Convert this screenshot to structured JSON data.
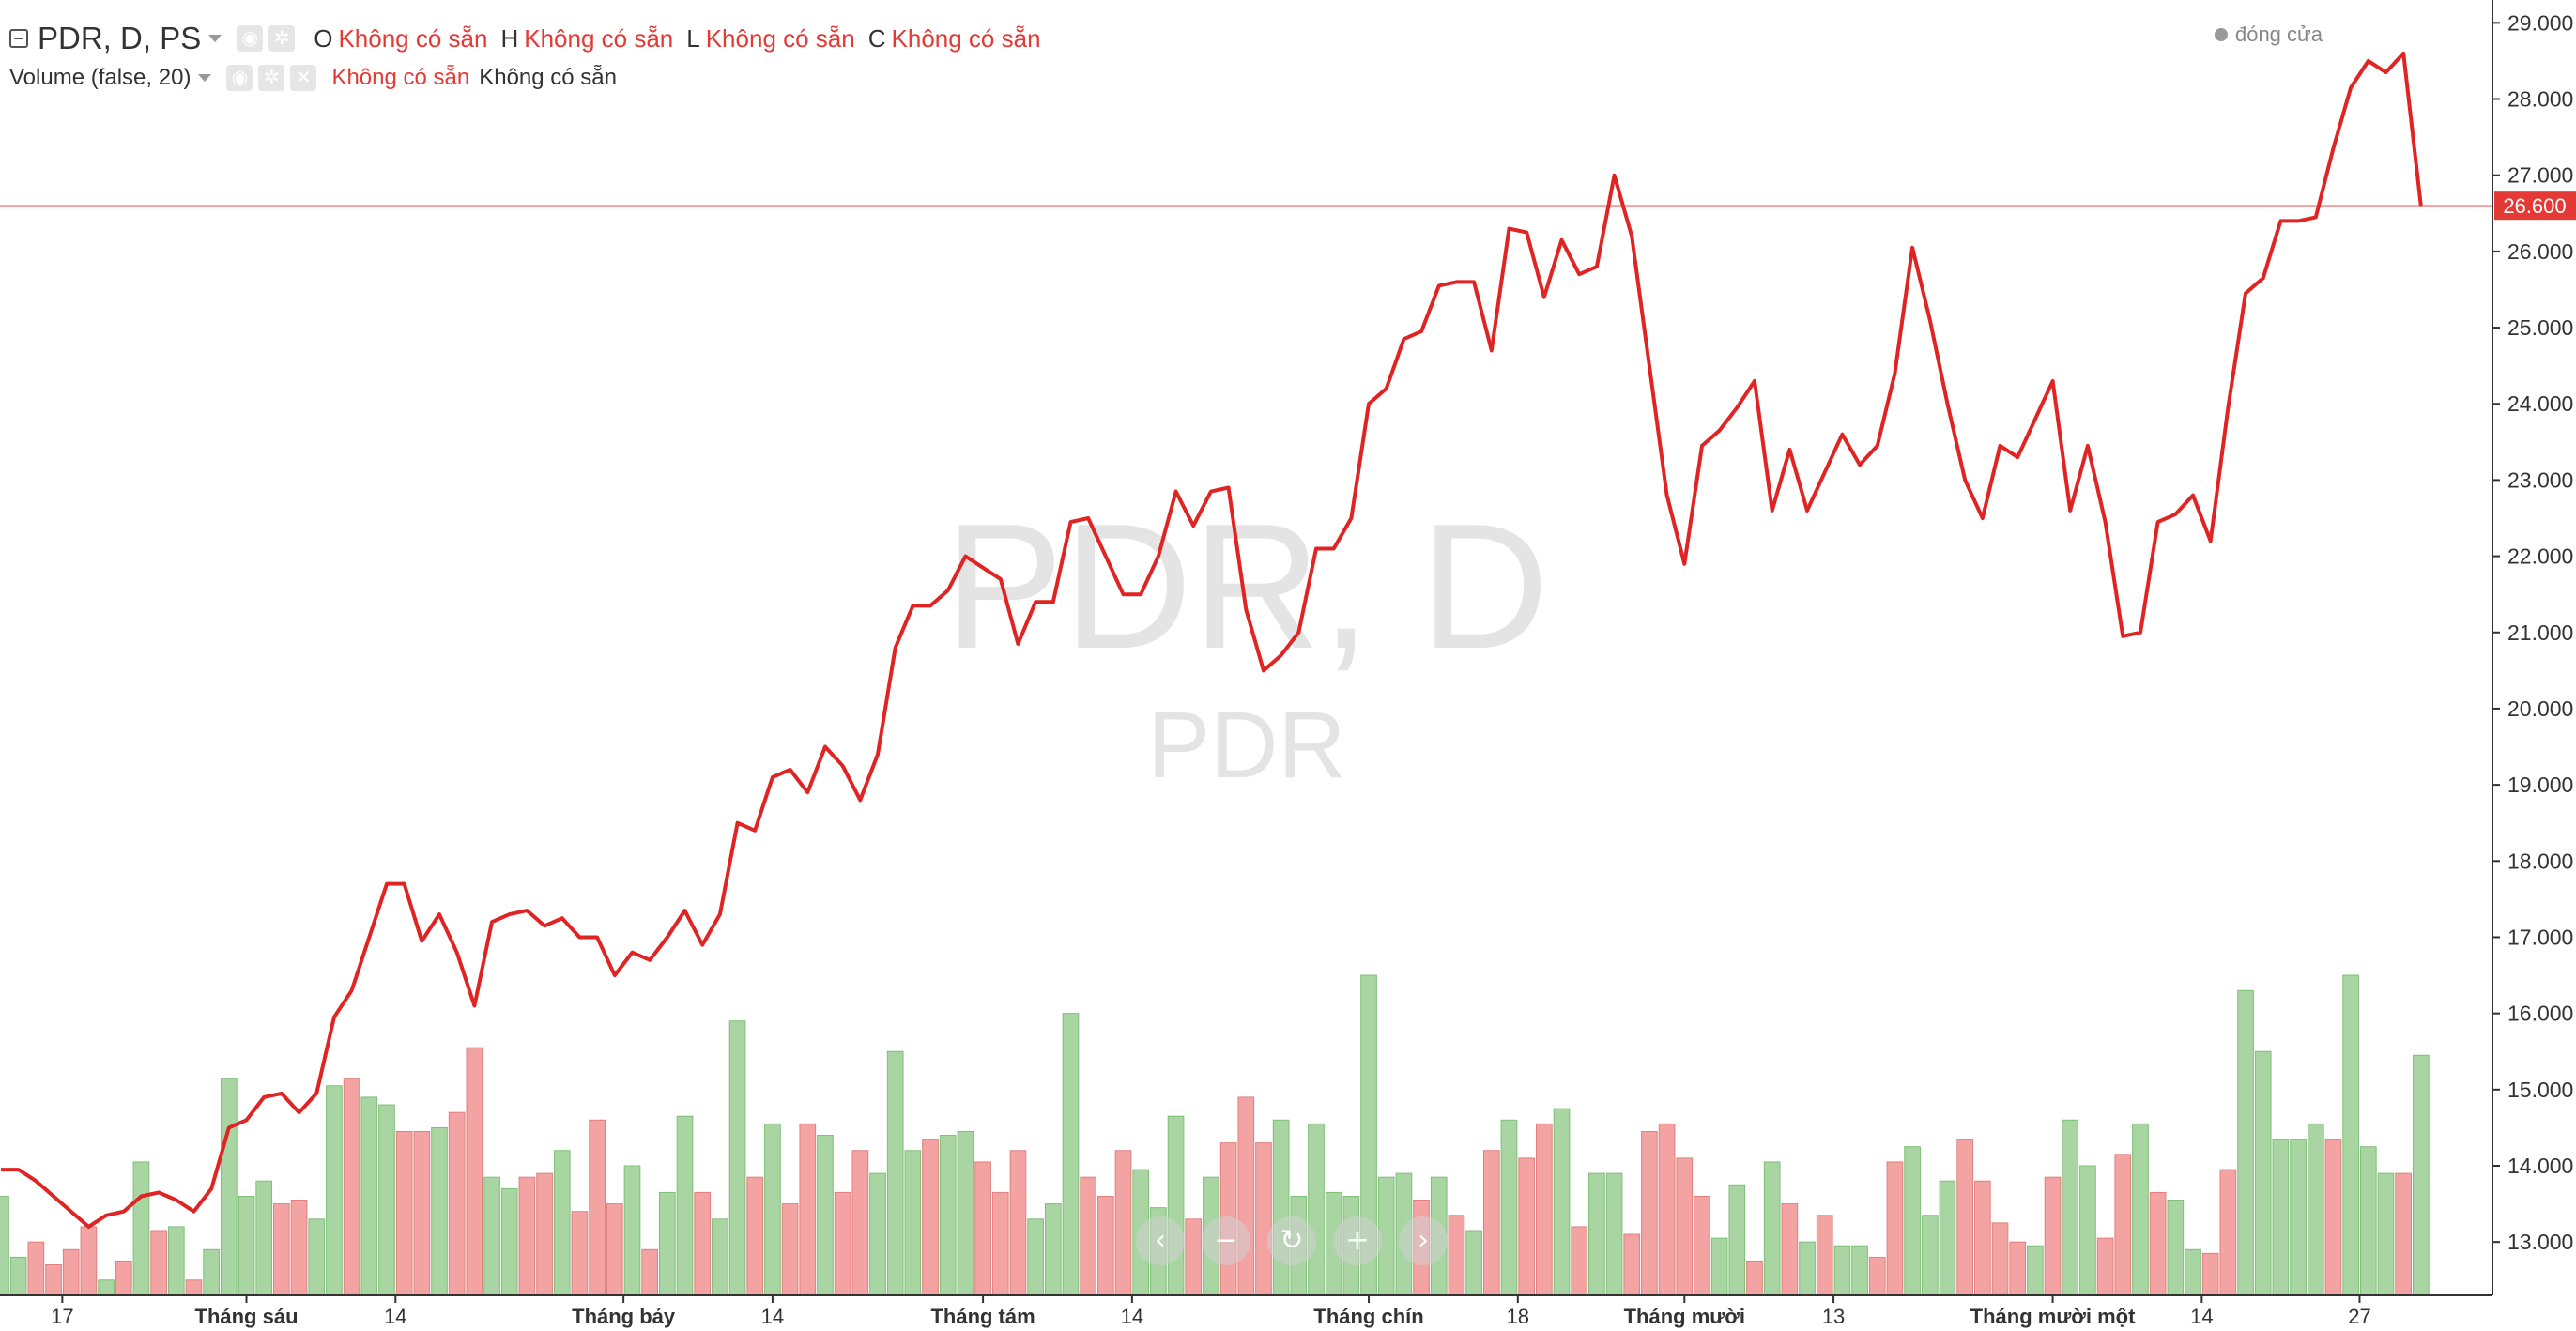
{
  "header": {
    "symbol": "PDR, D, PS",
    "ohlc": [
      {
        "key": "O",
        "value": "Không có sẵn"
      },
      {
        "key": "H",
        "value": "Không có sẵn"
      },
      {
        "key": "L",
        "value": "Không có sẵn"
      },
      {
        "key": "C",
        "value": "Không có sẵn"
      }
    ],
    "close_legend": "đóng cửa"
  },
  "volume_header": {
    "title": "Volume (false, 20)",
    "value1": "Không có sẵn",
    "value2": "Không có sẵn"
  },
  "icons": {
    "collapse": "collapse-icon",
    "eye": "eye-icon",
    "gear": "gear-icon",
    "close": "close-icon"
  },
  "nav_buttons": [
    {
      "name": "scroll-left-button",
      "glyph": "‹"
    },
    {
      "name": "zoom-out-button",
      "glyph": "−"
    },
    {
      "name": "reset-button",
      "glyph": "↻"
    },
    {
      "name": "zoom-in-button",
      "glyph": "+"
    },
    {
      "name": "scroll-right-button",
      "glyph": "›"
    }
  ],
  "colors": {
    "price_line": "#e02424",
    "up_volume": "#a8d5a2",
    "down_volume": "#f4a3a3",
    "price_tag": "#e53935",
    "watermark": "#e4e4e4"
  },
  "chart_data": {
    "type": "line",
    "watermark": "PDR, D",
    "watermark_sub": "PDR",
    "last_price": "26.600",
    "ylim": [
      12.3,
      29.3
    ],
    "y_ticks": [
      "13.000",
      "14.000",
      "15.000",
      "16.000",
      "17.000",
      "18.000",
      "19.000",
      "20.000",
      "21.000",
      "22.000",
      "23.000",
      "24.000",
      "25.000",
      "26.000",
      "27.000",
      "28.000",
      "29.000"
    ],
    "x_ticks": [
      {
        "label": "17",
        "index": 3.5,
        "bold": false
      },
      {
        "label": "Tháng sáu",
        "index": 14,
        "bold": true
      },
      {
        "label": "14",
        "index": 22.5,
        "bold": false
      },
      {
        "label": "Tháng bảy",
        "index": 35.5,
        "bold": true
      },
      {
        "label": "14",
        "index": 44,
        "bold": false
      },
      {
        "label": "Tháng tám",
        "index": 56,
        "bold": true
      },
      {
        "label": "14",
        "index": 64.5,
        "bold": false
      },
      {
        "label": "Tháng chín",
        "index": 78,
        "bold": true
      },
      {
        "label": "18",
        "index": 86.5,
        "bold": false
      },
      {
        "label": "Tháng mười",
        "index": 96,
        "bold": true
      },
      {
        "label": "13",
        "index": 104.5,
        "bold": false
      },
      {
        "label": "Tháng mười một",
        "index": 117,
        "bold": true
      },
      {
        "label": "14",
        "index": 125.5,
        "bold": false
      },
      {
        "label": "27",
        "index": 134.5,
        "bold": false
      }
    ],
    "series": [
      {
        "values": [
          13.95,
          13.95,
          13.8,
          13.6,
          13.4,
          13.2,
          13.35,
          13.4,
          13.6,
          13.65,
          13.55,
          13.4,
          13.7,
          14.5,
          14.6,
          14.9,
          14.95,
          14.7,
          14.95,
          15.95,
          16.3,
          17.0,
          17.7,
          17.7,
          16.95,
          17.3,
          16.8,
          16.1,
          17.2,
          17.3,
          17.35,
          17.15,
          17.25,
          17.0,
          17.0,
          16.5,
          16.8,
          16.7,
          17.0,
          17.35,
          16.9,
          17.3,
          18.5,
          18.4,
          19.1,
          19.2,
          18.9,
          19.5,
          19.25,
          18.8,
          19.4,
          20.8,
          21.35,
          21.35,
          21.55,
          22.0,
          21.85,
          21.7,
          20.85,
          21.4,
          21.4,
          22.45,
          22.5,
          22.0,
          21.5,
          21.5,
          22.0,
          22.85,
          22.4,
          22.85,
          22.9,
          21.3,
          20.5,
          20.7,
          21.0,
          22.1,
          22.1,
          22.5,
          24.0,
          24.2,
          24.85,
          24.95,
          25.55,
          25.6,
          25.6,
          24.7,
          26.3,
          26.25,
          25.4,
          26.15,
          25.7,
          25.8,
          27.0,
          26.2,
          24.5,
          22.8,
          21.9,
          23.45,
          23.65,
          23.95,
          24.3,
          22.6,
          23.4,
          22.6,
          23.1,
          23.6,
          23.2,
          23.45,
          24.4,
          26.05,
          25.1,
          24.0,
          23.0,
          22.5,
          23.45,
          23.3,
          23.8,
          24.3,
          22.6,
          23.45,
          22.45,
          20.95,
          21.0,
          22.45,
          22.55,
          22.8,
          22.2,
          23.95,
          25.45,
          25.65,
          26.4,
          26.4,
          26.45,
          27.35,
          28.15,
          28.5,
          28.35,
          28.6,
          26.6
        ]
      }
    ],
    "volume": {
      "name": "Volume (false, 20)",
      "values": [
        13.6,
        12.8,
        13.0,
        12.7,
        12.9,
        13.2,
        12.5,
        12.75,
        14.05,
        13.15,
        13.2,
        12.5,
        12.9,
        15.15,
        13.6,
        13.8,
        13.5,
        13.55,
        13.3,
        15.05,
        15.15,
        14.9,
        14.8,
        14.45,
        14.45,
        14.5,
        14.7,
        15.55,
        13.85,
        13.7,
        13.85,
        13.9,
        14.2,
        13.4,
        14.6,
        13.5,
        14.0,
        12.9,
        13.65,
        14.65,
        13.65,
        13.3,
        15.9,
        13.85,
        14.55,
        13.5,
        14.55,
        14.4,
        13.65,
        14.2,
        13.9,
        15.5,
        14.2,
        14.35,
        14.4,
        14.45,
        14.05,
        13.65,
        14.2,
        13.3,
        13.5,
        16.0,
        13.85,
        13.6,
        14.2,
        13.95,
        13.45,
        14.65,
        13.3,
        13.85,
        14.3,
        14.9,
        14.3,
        14.6,
        13.6,
        14.55,
        13.65,
        13.6,
        16.5,
        13.85,
        13.9,
        13.55,
        13.85,
        13.35,
        13.15,
        14.2,
        14.6,
        14.1,
        14.55,
        14.75,
        13.2,
        13.9,
        13.9,
        13.1,
        14.45,
        14.55,
        14.1,
        13.6,
        13.05,
        13.75,
        12.75,
        14.05,
        13.5,
        13.0,
        13.35,
        12.95,
        12.95,
        12.8,
        14.05,
        14.25,
        13.35,
        13.8,
        14.35,
        13.8,
        13.25,
        13.0,
        12.95,
        13.85,
        14.6,
        14.0,
        13.05,
        14.15,
        14.55,
        13.65,
        13.55,
        12.9,
        12.85,
        13.95,
        16.3,
        15.5,
        14.35,
        14.35,
        14.55,
        14.35,
        16.5,
        14.25,
        13.9,
        13.9,
        15.45
      ],
      "up": [
        1,
        1,
        0,
        0,
        0,
        0,
        1,
        0,
        1,
        0,
        1,
        0,
        1,
        1,
        1,
        1,
        0,
        0,
        1,
        1,
        0,
        1,
        1,
        0,
        0,
        1,
        0,
        0,
        1,
        1,
        0,
        0,
        1,
        0,
        0,
        0,
        1,
        0,
        1,
        1,
        0,
        1,
        1,
        0,
        1,
        0,
        0,
        1,
        0,
        0,
        1,
        1,
        1,
        0,
        1,
        1,
        0,
        0,
        0,
        1,
        1,
        1,
        0,
        0,
        0,
        1,
        1,
        1,
        0,
        1,
        0,
        0,
        0,
        1,
        1,
        1,
        1,
        1,
        1,
        1,
        1,
        0,
        1,
        0,
        1,
        0,
        1,
        0,
        0,
        1,
        0,
        1,
        1,
        0,
        0,
        0,
        0,
        0,
        1,
        1,
        0,
        1,
        0,
        1,
        0,
        1,
        1,
        0,
        0,
        1,
        1,
        1,
        0,
        0,
        0,
        0,
        1,
        0,
        1,
        1,
        0,
        0,
        1,
        0,
        1,
        1,
        0,
        0,
        1,
        1,
        1,
        1,
        1,
        0,
        1,
        1,
        1,
        0,
        1,
        0
      ]
    }
  }
}
